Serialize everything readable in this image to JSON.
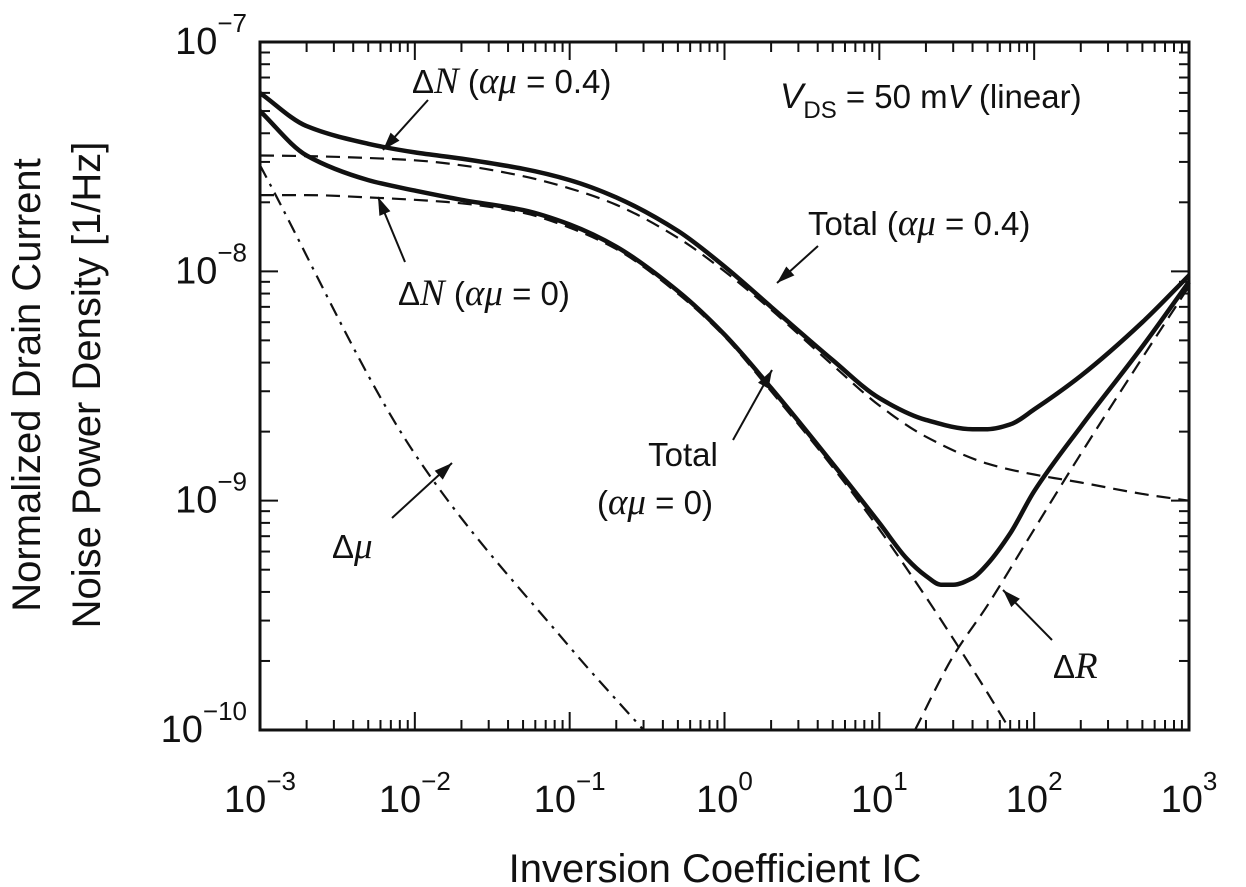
{
  "chart_data": {
    "type": "line",
    "xscale": "log",
    "yscale": "log",
    "xlim": [
      0.001,
      1000
    ],
    "ylim": [
      1e-10,
      1e-07
    ],
    "xlabel": "Inversion Coefficient IC",
    "ylabel_line1": "Normalized Drain Current",
    "ylabel_line2": "Noise Power Density [1/Hz]",
    "x_tick_labels": [
      {
        "value": 0.001,
        "base": "10",
        "exp": "−3"
      },
      {
        "value": 0.01,
        "base": "10",
        "exp": "−2"
      },
      {
        "value": 0.1,
        "base": "10",
        "exp": "−1"
      },
      {
        "value": 1,
        "base": "10",
        "exp": "0"
      },
      {
        "value": 10,
        "base": "10",
        "exp": "1"
      },
      {
        "value": 100,
        "base": "10",
        "exp": "2"
      },
      {
        "value": 1000,
        "base": "10",
        "exp": "3"
      }
    ],
    "y_tick_labels": [
      {
        "value": 1e-10,
        "base": "10",
        "exp": "−10"
      },
      {
        "value": 1e-09,
        "base": "10",
        "exp": "−9"
      },
      {
        "value": 1e-08,
        "base": "10",
        "exp": "−8"
      },
      {
        "value": 1e-07,
        "base": "10",
        "exp": "−7"
      }
    ],
    "condition": {
      "v": "V",
      "sub": "DS",
      "rest": " = 50 m",
      "unit": "V",
      "tail": " (linear)"
    },
    "series": [
      {
        "key": "dn04",
        "style": "dashed",
        "x": [
          0.001,
          0.002,
          0.005,
          0.01,
          0.02,
          0.05,
          0.1,
          0.2,
          0.5,
          1,
          2,
          5,
          10,
          20,
          50,
          100,
          200,
          500,
          1000
        ],
        "y": [
          3.2e-08,
          3.18e-08,
          3.12e-08,
          3.05e-08,
          2.9e-08,
          2.6e-08,
          2.3e-08,
          1.95e-08,
          1.4e-08,
          1e-08,
          6.8e-09,
          3.9e-09,
          2.6e-09,
          1.9e-09,
          1.45e-09,
          1.3e-09,
          1.2e-09,
          1.07e-09,
          1e-09
        ]
      },
      {
        "key": "dn0",
        "style": "dashed",
        "x": [
          0.001,
          0.002,
          0.005,
          0.01,
          0.02,
          0.05,
          0.1,
          0.2,
          0.5,
          1,
          2,
          5,
          10,
          20,
          30,
          50,
          70
        ],
        "y": [
          2.15e-08,
          2.15e-08,
          2.1e-08,
          2.05e-08,
          1.98e-08,
          1.8e-08,
          1.55e-08,
          1.25e-08,
          8e-09,
          5.2e-09,
          3e-09,
          1.4e-09,
          7.5e-10,
          3.8e-10,
          2.5e-10,
          1.45e-10,
          1e-10
        ]
      },
      {
        "key": "dmu",
        "style": "dashdot",
        "x": [
          0.001,
          0.01,
          0.1,
          0.3
        ],
        "y": [
          2.9e-08,
          1.6e-09,
          2.3e-10,
          1e-10
        ]
      },
      {
        "key": "dr",
        "style": "dashed",
        "x": [
          17,
          30,
          50,
          100,
          200,
          500,
          1000
        ],
        "y": [
          1e-10,
          2.1e-10,
          3.5e-10,
          7.5e-10,
          1.6e-09,
          4.2e-09,
          8.6e-09
        ]
      },
      {
        "key": "total04",
        "style": "solid",
        "x": [
          0.001,
          0.002,
          0.005,
          0.01,
          0.02,
          0.05,
          0.1,
          0.2,
          0.5,
          1,
          2,
          5,
          10,
          20,
          40,
          50,
          70,
          100,
          200,
          500,
          1000
        ],
        "y": [
          6e-08,
          4.3e-08,
          3.6e-08,
          3.3e-08,
          3.1e-08,
          2.8e-08,
          2.5e-08,
          2.1e-08,
          1.5e-08,
          1.05e-08,
          7e-09,
          4.1e-09,
          2.8e-09,
          2.25e-09,
          2.05e-09,
          2.05e-09,
          2.15e-09,
          2.5e-09,
          3.5e-09,
          6e-09,
          9.6e-09
        ]
      },
      {
        "key": "total0",
        "style": "solid",
        "x": [
          0.001,
          0.002,
          0.005,
          0.01,
          0.02,
          0.05,
          0.1,
          0.2,
          0.5,
          1,
          2,
          5,
          10,
          15,
          20,
          25,
          30,
          40,
          50,
          70,
          100,
          200,
          500,
          1000
        ],
        "y": [
          5e-08,
          3.2e-08,
          2.5e-08,
          2.25e-08,
          2.05e-08,
          1.85e-08,
          1.6e-08,
          1.28e-08,
          8.2e-09,
          5.3e-09,
          3.1e-09,
          1.45e-09,
          8e-10,
          5.6e-10,
          4.7e-10,
          4.3e-10,
          4.3e-10,
          4.6e-10,
          5.3e-10,
          7.2e-10,
          1.1e-09,
          2.1e-09,
          4.7e-09,
          9e-09
        ]
      }
    ],
    "annotations": {
      "dn04": {
        "delta": "Δ",
        "letter": "N",
        "open": " (",
        "greek": "αμ",
        "value": " = 0.4)"
      },
      "dn0": {
        "delta": "Δ",
        "letter": "N",
        "open": " (",
        "greek": "αμ",
        "value": " = 0)"
      },
      "total04": {
        "word": "Total",
        "open": " (",
        "greek": "αμ",
        "value": " = 0.4)"
      },
      "total0": {
        "word": "Total",
        "open": "(",
        "greek": "αμ",
        "value": " = 0)"
      },
      "dmu": {
        "delta": "Δ",
        "greek": "μ"
      },
      "dr": {
        "delta": "Δ",
        "letter": "R"
      }
    }
  }
}
